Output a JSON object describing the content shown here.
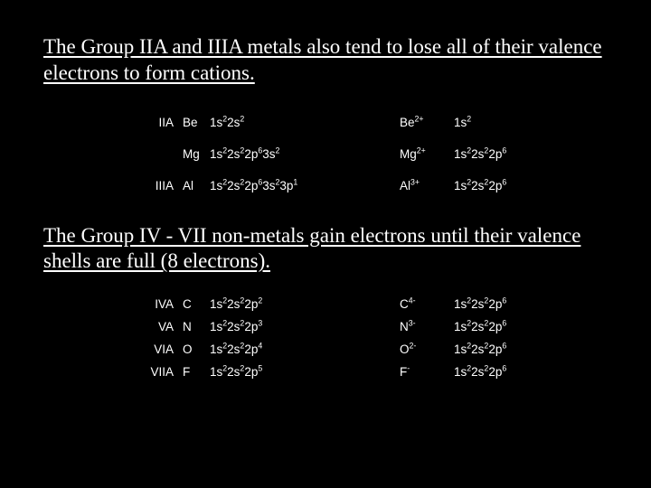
{
  "colors": {
    "background": "#000000",
    "text": "#ffffff"
  },
  "heading1": "The Group IIA and IIIA metals also tend to lose all of their valence electrons to form cations.",
  "table1": {
    "rows": [
      {
        "group": "IIA",
        "elem": "Be",
        "conf_parts": [
          "1s",
          "2",
          "2s",
          "2"
        ],
        "ion_base": "Be",
        "ion_sup": "2+",
        "iconf_parts": [
          "1s",
          "2"
        ]
      },
      {
        "group": "",
        "elem": "Mg",
        "conf_parts": [
          "1s",
          "2",
          "2s",
          "2",
          "2p",
          "6",
          "3s",
          "2"
        ],
        "ion_base": "Mg",
        "ion_sup": "2+",
        "iconf_parts": [
          "1s",
          "2",
          "2s",
          "2",
          "2p",
          "6"
        ]
      },
      {
        "group": "IIIA",
        "elem": "Al",
        "conf_parts": [
          "1s",
          "2",
          "2s",
          "2",
          "2p",
          "6",
          "3s",
          "2",
          "3p",
          "1"
        ],
        "ion_base": "Al",
        "ion_sup": "3+",
        "iconf_parts": [
          "1s",
          "2",
          "2s",
          "2",
          "2p",
          "6"
        ]
      }
    ]
  },
  "heading2": "The Group IV - VII non-metals gain electrons until their valence shells are full (8 electrons).",
  "table2": {
    "rows": [
      {
        "group": "IVA",
        "elem": "C",
        "conf_parts": [
          "1s",
          "2",
          "2s",
          "2",
          "2p",
          "2"
        ],
        "ion_base": "C",
        "ion_sup": "4-",
        "iconf_parts": [
          "1s",
          "2",
          "2s",
          "2",
          "2p",
          "6"
        ]
      },
      {
        "group": "VA",
        "elem": "N",
        "conf_parts": [
          "1s",
          "2",
          "2s",
          "2",
          "2p",
          "3"
        ],
        "ion_base": "N",
        "ion_sup": "3-",
        "iconf_parts": [
          "1s",
          "2",
          "2s",
          "2",
          "2p",
          "6"
        ]
      },
      {
        "group": "VIA",
        "elem": "O",
        "conf_parts": [
          "1s",
          "2",
          "2s",
          "2",
          "2p",
          "4"
        ],
        "ion_base": "O",
        "ion_sup": "2-",
        "iconf_parts": [
          "1s",
          "2",
          "2s",
          "2",
          "2p",
          "6"
        ]
      },
      {
        "group": "VIIA",
        "elem": "F",
        "conf_parts": [
          "1s",
          "2",
          "2s",
          "2",
          "2p",
          "5"
        ],
        "ion_base": "F",
        "ion_sup": "-",
        "iconf_parts": [
          "1s",
          "2",
          "2s",
          "2",
          "2p",
          "6"
        ]
      }
    ]
  }
}
